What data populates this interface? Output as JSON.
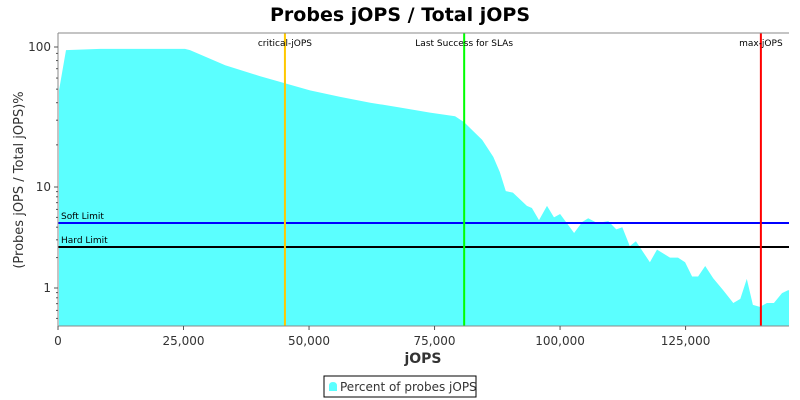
{
  "chart_data": {
    "type": "area",
    "title": "Probes jOPS / Total jOPS",
    "xlabel": "jOPS",
    "ylabel": "(Probes jOPS / Total jOPS)%",
    "xlim": [
      0,
      145600
    ],
    "ylim": [
      0.42,
      126
    ],
    "yscale": "log",
    "grid": false,
    "legend_placement": "bottom",
    "x_ticks": [
      0,
      25000,
      50000,
      75000,
      100000,
      125000
    ],
    "x_tick_labels": [
      "0",
      "25,000",
      "50,000",
      "75,000",
      "100,000",
      "125,000"
    ],
    "y_ticks": [
      1,
      10,
      100
    ],
    "y_tick_labels": [
      "1",
      "10",
      "100"
    ],
    "series": [
      {
        "name": "Percent of probes jOPS",
        "color": "#5BFFFF",
        "x": [
          200,
          1600,
          8400,
          25300,
          26300,
          33300,
          40200,
          45200,
          50200,
          56200,
          62200,
          68100,
          74100,
          79100,
          80900,
          84500,
          86700,
          88000,
          89200,
          90600,
          93400,
          94400,
          95800,
          97400,
          98800,
          100000,
          102800,
          104400,
          105600,
          107400,
          109600,
          111200,
          112400,
          113900,
          115100,
          117900,
          119300,
          121900,
          123500,
          124900,
          126300,
          127500,
          128900,
          130500,
          132500,
          134500,
          135900,
          137200,
          138400,
          139800,
          141200,
          142600,
          144200,
          145400
        ],
        "y": [
          49,
          95,
          97,
          97,
          95,
          74,
          62,
          55,
          49,
          44,
          40,
          37,
          34,
          32,
          29,
          21.7,
          16.4,
          12.8,
          9.1,
          8.8,
          6.5,
          6.2,
          4.7,
          6.5,
          5.0,
          5.4,
          3.5,
          4.5,
          4.9,
          4.4,
          4.6,
          3.8,
          4.0,
          2.6,
          2.9,
          1.8,
          2.4,
          2.0,
          2.0,
          1.8,
          1.3,
          1.3,
          1.65,
          1.25,
          0.95,
          0.71,
          0.78,
          1.23,
          0.68,
          0.65,
          0.71,
          0.71,
          0.89,
          0.95
        ]
      }
    ],
    "vertical_markers": [
      {
        "label": "critical-jOPS",
        "x": 45200,
        "color": "#FFC800"
      },
      {
        "label": "Last Success for SLAs",
        "x": 80900,
        "color": "#00FF00"
      },
      {
        "label": "max-jOPS",
        "x": 140000,
        "color": "#FF0000"
      }
    ],
    "horizontal_markers": [
      {
        "label": "Soft Limit",
        "y": 4.4,
        "color": "#0000FF"
      },
      {
        "label": "Hard Limit",
        "y": 2.55,
        "color": "#000000"
      }
    ]
  }
}
